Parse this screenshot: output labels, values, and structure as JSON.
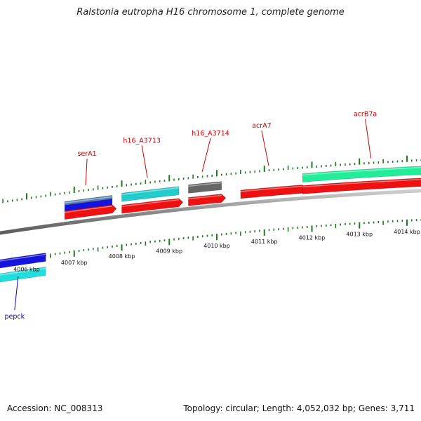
{
  "title": "Ralstonia eutropha H16 chromosome 1, complete genome",
  "footer": {
    "accession": "Accession: NC_008313",
    "summary": "Topology: circular; Length: 4,052,032 bp; Genes: 3,711"
  },
  "colors": {
    "backbone": "#8a8a8a",
    "tick": "#1f7a1f",
    "label_red": "#cc0000",
    "label_blue": "#0000cc"
  },
  "kbp_labels": [
    {
      "text": "4006 kbp",
      "kbp": 4006
    },
    {
      "text": "4007 kbp",
      "kbp": 4007
    },
    {
      "text": "4008 kbp",
      "kbp": 4008
    },
    {
      "text": "4009 kbp",
      "kbp": 4009
    },
    {
      "text": "4010 kbp",
      "kbp": 4010
    },
    {
      "text": "4011 kbp",
      "kbp": 4011
    },
    {
      "text": "4012 kbp",
      "kbp": 4012
    },
    {
      "text": "4013 kbp",
      "kbp": 4013
    },
    {
      "text": "4014 kbp",
      "kbp": 4014
    }
  ],
  "genes": [
    {
      "label": "pepck",
      "start": 4005.3,
      "end": 4006.4,
      "color": "#1414dd",
      "label_color": "#0000cc"
    },
    {
      "start": 4005.3,
      "end": 4006.4,
      "color": "#22dddd"
    },
    {
      "label": "serA1",
      "start": 4006.8,
      "end": 4007.8,
      "color": "#1414dd",
      "label_color": "#cc0000"
    },
    {
      "start": 4006.8,
      "end": 4007.8,
      "color": "#5580b0"
    },
    {
      "start": 4006.8,
      "end": 4007.8,
      "color": "#ee1111"
    },
    {
      "label": "h16_A3713",
      "start": 4008.0,
      "end": 4009.2,
      "color": "#22cccc",
      "label_color": "#cc0000"
    },
    {
      "start": 4008.0,
      "end": 4009.2,
      "color": "#ee1111"
    },
    {
      "label": "h16_A3714",
      "start": 4009.4,
      "end": 4010.1,
      "color": "#666666",
      "label_color": "#cc0000"
    },
    {
      "start": 4009.4,
      "end": 4010.1,
      "color": "#ee1111"
    },
    {
      "label": "acrA7",
      "start": 4010.5,
      "end": 4011.8,
      "color": "#ee1111",
      "label_color": "#cc0000"
    },
    {
      "label": "acrB7a",
      "start": 4011.8,
      "end": 4014.8,
      "color": "#22ee99",
      "label_color": "#cc0000"
    },
    {
      "start": 4011.8,
      "end": 4014.8,
      "color": "#ee1111"
    }
  ]
}
